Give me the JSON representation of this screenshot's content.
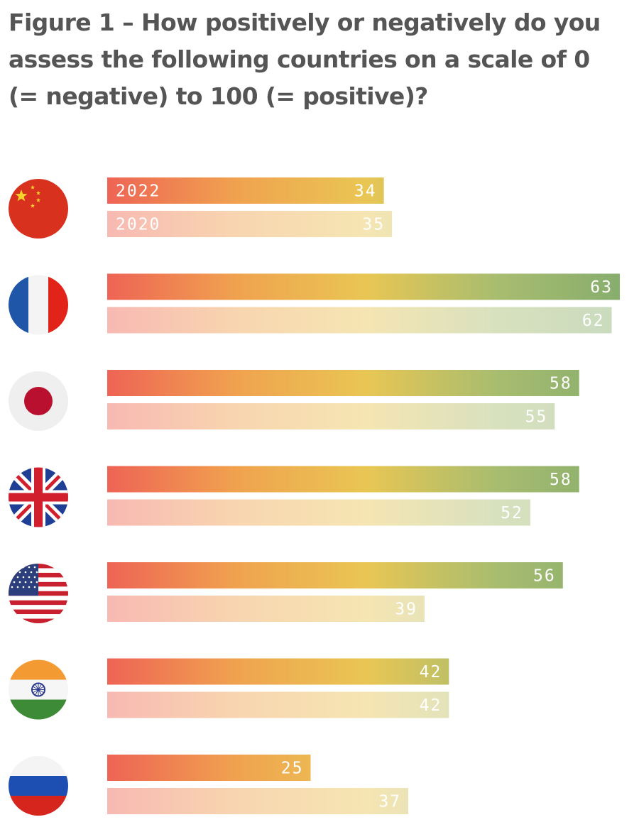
{
  "title": "Figure 1 – How positively or negatively do you assess the following countries on a scale of 0 (= negative) to 100 (= positive)?",
  "chart_data": {
    "type": "bar",
    "orientation": "horizontal",
    "title": "Figure 1 – How positively or negatively do you assess the following countries on a scale of 0 (= negative) to 100 (= positive)?",
    "xlim": [
      0,
      100
    ],
    "grid": false,
    "legend": "inline-first-group",
    "categories": [
      "China",
      "France",
      "Japan",
      "United Kingdom",
      "United States",
      "India",
      "Russia"
    ],
    "category_icons": [
      "china-flag-icon",
      "france-flag-icon",
      "japan-flag-icon",
      "uk-flag-icon",
      "usa-flag-icon",
      "india-flag-icon",
      "russia-flag-icon"
    ],
    "series": [
      {
        "name": "2022",
        "values": [
          34,
          63,
          58,
          58,
          56,
          42,
          25
        ]
      },
      {
        "name": "2020",
        "values": [
          35,
          62,
          55,
          52,
          39,
          42,
          37
        ]
      }
    ],
    "colors": {
      "gradient": [
        "#ee6455",
        "#f0a24f",
        "#e9c654",
        "#a9bd6f",
        "#86ad6e"
      ],
      "faded_opacity": 0.45
    }
  }
}
